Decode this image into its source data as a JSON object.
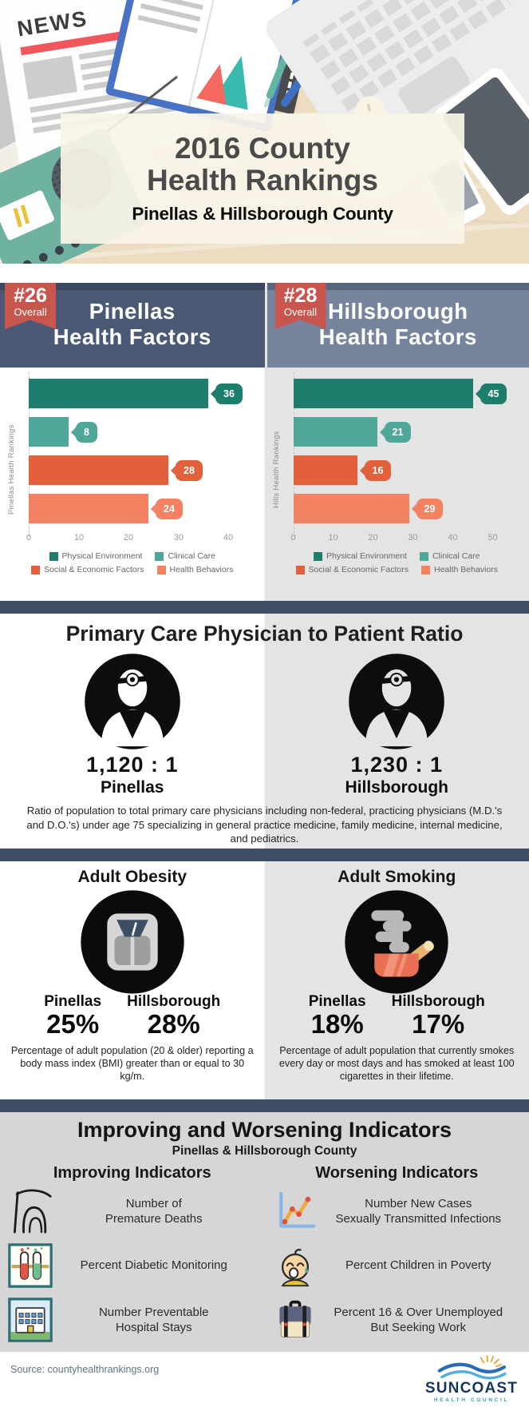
{
  "theme": {
    "ribbon_red": "#c9554f",
    "panel_dark": "#4a5a74",
    "panel_light": "#76849d",
    "divider_navy": "#3e4e66",
    "right_column_bg": "#e4e4e4",
    "indicators_bg": "#d6d6d6",
    "desk_wood": "#ecdcc2"
  },
  "hero": {
    "news_label": "NEWS",
    "title": "2016 County\nHealth Rankings",
    "subtitle": "Pinellas & Hillsborough County"
  },
  "panels": [
    {
      "rank": "#26",
      "rank_label": "Overall",
      "title": "Pinellas\nHealth Factors"
    },
    {
      "rank": "#28",
      "rank_label": "Overall",
      "title": "Hillsborough\nHealth Factors"
    }
  ],
  "chart_data": [
    {
      "type": "bar",
      "orientation": "horizontal",
      "title": "Pinellas Health Factors",
      "ylabel": "Pinellas Health Rankings",
      "categories": [
        "Physical Environment",
        "Clinical Care",
        "Social & Economic Factors",
        "Health Behaviors"
      ],
      "values": [
        36,
        8,
        28,
        24
      ],
      "colors": [
        "#1e7e6d",
        "#4fa79a",
        "#e2603c",
        "#f58163"
      ],
      "xlim": [
        0,
        40
      ],
      "xticks": [
        0,
        10,
        20,
        30,
        40
      ],
      "grid": false,
      "legend_position": "bottom"
    },
    {
      "type": "bar",
      "orientation": "horizontal",
      "title": "Hillsborough Health Factors",
      "ylabel": "Hills Health Rankings",
      "categories": [
        "Physical Environment",
        "Clinical Care",
        "Social & Economic Factors",
        "Health Behaviors"
      ],
      "values": [
        45,
        21,
        16,
        29
      ],
      "colors": [
        "#1e7e6d",
        "#4fa79a",
        "#e2603c",
        "#f58163"
      ],
      "xlim": [
        0,
        50
      ],
      "xticks": [
        0,
        10,
        20,
        30,
        40,
        50
      ],
      "grid": false,
      "legend_position": "bottom"
    }
  ],
  "physician": {
    "heading": "Primary Care Physician to Patient Ratio",
    "counties": [
      {
        "value": "1,120 : 1",
        "label": "Pinellas"
      },
      {
        "value": "1,230 : 1",
        "label": "Hillsborough"
      }
    ],
    "description": "Ratio of population to total primary care physicians including non-federal, practicing physicians (M.D.'s and D.O.'s) under age 75 specializing in general practice medicine, family medicine, internal medicine, and pediatrics."
  },
  "stats": [
    {
      "heading": "Adult Obesity",
      "icon": "weight-scale-icon",
      "counties": [
        {
          "label": "Pinellas",
          "value": "25%"
        },
        {
          "label": "Hillsborough",
          "value": "28%"
        }
      ],
      "description": "Percentage of adult population (20 & older) reporting a body mass index (BMI) greater than or equal to 30 kg/m."
    },
    {
      "heading": "Adult Smoking",
      "icon": "smoking-icon",
      "counties": [
        {
          "label": "Pinellas",
          "value": "18%"
        },
        {
          "label": "Hillsborough",
          "value": "17%"
        }
      ],
      "description": "Percentage of adult population that currently smokes every day or most days and has smoked at least 100 cigarettes in their lifetime."
    }
  ],
  "indicators": {
    "heading": "Improving and Worsening Indicators",
    "subheading": "Pinellas & Hillsborough County",
    "improving": {
      "heading": "Improving Indicators",
      "items": [
        {
          "icon": "grim-reaper-icon",
          "label": "Number of\nPremature Deaths"
        },
        {
          "icon": "test-tubes-icon",
          "label": "Percent Diabetic Monitoring"
        },
        {
          "icon": "hospital-icon",
          "label": "Number Preventable\nHospital Stays"
        }
      ]
    },
    "worsening": {
      "heading": "Worsening Indicators",
      "items": [
        {
          "icon": "line-chart-icon",
          "label": "Number New Cases\nSexually Transmitted Infections"
        },
        {
          "icon": "crying-baby-icon",
          "label": "Percent Children in Poverty"
        },
        {
          "icon": "briefcase-icon",
          "label": "Percent 16 & Over Unemployed\nBut Seeking Work"
        }
      ]
    }
  },
  "footer": {
    "source": "Source: countyhealthrankings.org",
    "logo": {
      "name": "SUNCOAST",
      "tagline": "HEALTH COUNCIL"
    }
  }
}
